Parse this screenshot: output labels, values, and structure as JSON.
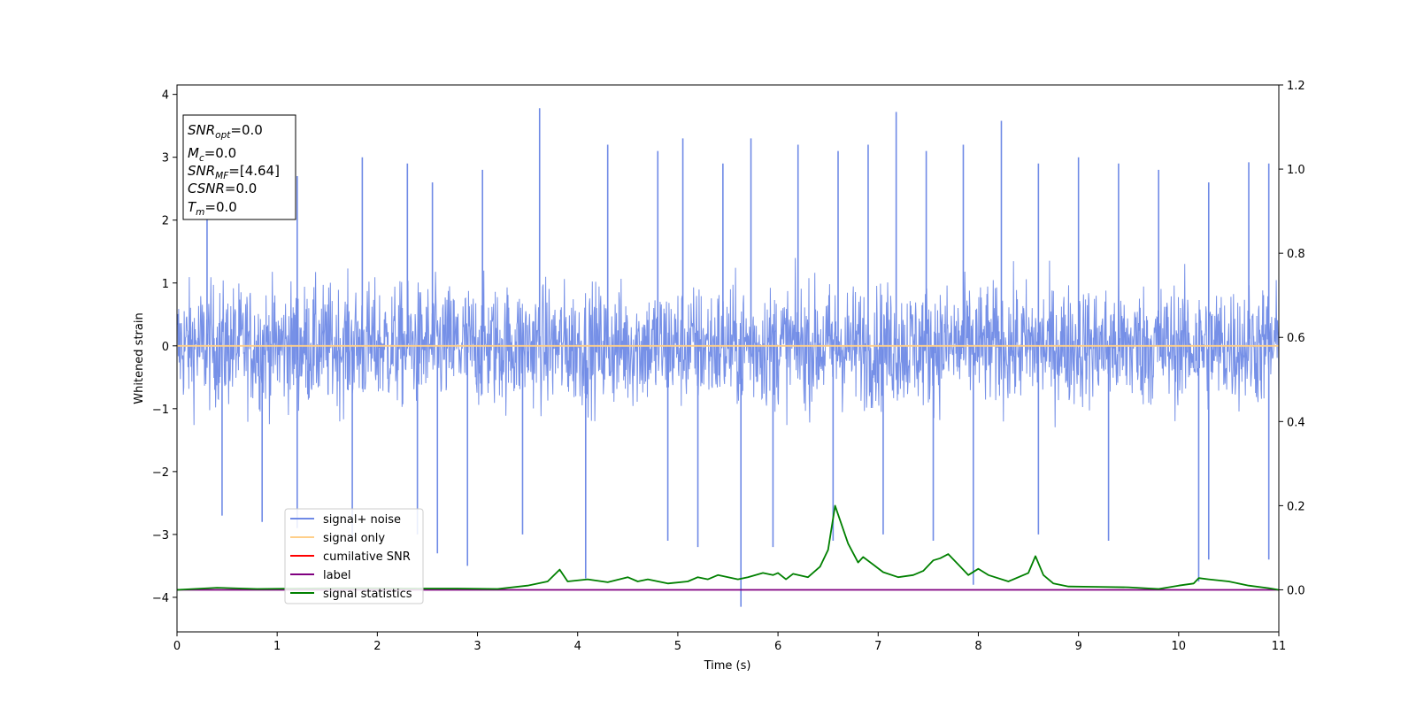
{
  "chart_data": {
    "type": "line",
    "xlabel": "Time (s)",
    "ylabel": "Whitened strain",
    "xlim": [
      0,
      11
    ],
    "ylim_left": [
      -4.55,
      4.15
    ],
    "ylim_right": [
      -0.1,
      1.2
    ],
    "x_ticks": [
      0,
      1,
      2,
      3,
      4,
      5,
      6,
      7,
      8,
      9,
      10,
      11
    ],
    "y_ticks_left": [
      4,
      3,
      2,
      1,
      0,
      -1,
      -2,
      -3,
      -4
    ],
    "y_ticks_right": [
      1.2,
      1.0,
      0.8,
      0.6,
      0.4,
      0.2,
      0.0
    ],
    "legend_position": "lower-left",
    "legend": [
      {
        "label": "signal+ noise",
        "color": "#6f8ae6"
      },
      {
        "label": "signal only",
        "color": "#ffcf8a"
      },
      {
        "label": "cumilative SNR",
        "color": "#ff0000"
      },
      {
        "label": "label",
        "color": "#800080"
      },
      {
        "label": "signal statistics",
        "color": "#008000"
      }
    ],
    "info_box": [
      {
        "main": "SNR",
        "sub": "opt",
        "value": "=0.0"
      },
      {
        "main": "M",
        "sub": "c",
        "value": "=0.0"
      },
      {
        "main": "SNR",
        "sub": "MF",
        "value": "=[4.64]"
      },
      {
        "main": "CSNR",
        "sub": "",
        "value": "=0.0"
      },
      {
        "main": "T",
        "sub": "m",
        "value": "=0.0"
      }
    ],
    "series": [
      {
        "name": "signal+ noise",
        "axis": "left",
        "style": "dense noise band",
        "color": "#6f8ae6",
        "typical_range": [
          -1.5,
          1.5
        ],
        "spikes_up": [
          [
            0.3,
            2.6
          ],
          [
            1.2,
            2.7
          ],
          [
            1.85,
            3.0
          ],
          [
            2.3,
            2.9
          ],
          [
            2.55,
            2.6
          ],
          [
            3.05,
            2.8
          ],
          [
            3.62,
            3.78
          ],
          [
            4.3,
            3.2
          ],
          [
            4.8,
            3.1
          ],
          [
            5.05,
            3.3
          ],
          [
            5.45,
            2.9
          ],
          [
            5.73,
            3.3
          ],
          [
            6.2,
            3.2
          ],
          [
            6.6,
            3.1
          ],
          [
            6.9,
            3.2
          ],
          [
            7.18,
            3.72
          ],
          [
            7.48,
            3.1
          ],
          [
            7.85,
            3.2
          ],
          [
            8.23,
            3.58
          ],
          [
            8.6,
            2.9
          ],
          [
            9.0,
            3.0
          ],
          [
            9.4,
            2.9
          ],
          [
            9.8,
            2.8
          ],
          [
            10.3,
            2.6
          ],
          [
            10.7,
            2.92
          ],
          [
            10.9,
            2.9
          ]
        ],
        "spikes_down": [
          [
            0.45,
            -2.7
          ],
          [
            0.85,
            -2.8
          ],
          [
            1.2,
            -2.9
          ],
          [
            1.75,
            -3.1
          ],
          [
            2.4,
            -3.0
          ],
          [
            2.6,
            -3.3
          ],
          [
            2.9,
            -3.5
          ],
          [
            3.45,
            -3.0
          ],
          [
            4.08,
            -3.7
          ],
          [
            4.9,
            -3.1
          ],
          [
            5.2,
            -3.2
          ],
          [
            5.63,
            -4.15
          ],
          [
            5.95,
            -3.2
          ],
          [
            6.55,
            -3.1
          ],
          [
            7.05,
            -3.0
          ],
          [
            7.55,
            -3.1
          ],
          [
            7.95,
            -3.8
          ],
          [
            8.6,
            -3.0
          ],
          [
            9.3,
            -3.1
          ],
          [
            10.2,
            -3.75
          ],
          [
            10.3,
            -3.4
          ],
          [
            10.9,
            -3.4
          ]
        ]
      },
      {
        "name": "signal only",
        "axis": "left",
        "color": "#ffcf8a",
        "x": [
          0,
          11
        ],
        "y": [
          0,
          0
        ]
      },
      {
        "name": "label",
        "axis": "right",
        "color": "#800080",
        "x": [
          0,
          11
        ],
        "y": [
          0.0,
          0.0
        ]
      },
      {
        "name": "signal statistics",
        "axis": "right",
        "color": "#008000",
        "x": [
          0,
          0.4,
          0.8,
          1.2,
          1.6,
          2.0,
          2.4,
          2.8,
          3.2,
          3.5,
          3.7,
          3.82,
          3.9,
          4.1,
          4.3,
          4.5,
          4.6,
          4.7,
          4.9,
          5.1,
          5.2,
          5.3,
          5.4,
          5.6,
          5.7,
          5.85,
          5.95,
          6.0,
          6.08,
          6.15,
          6.3,
          6.42,
          6.5,
          6.57,
          6.7,
          6.8,
          6.85,
          6.95,
          7.05,
          7.2,
          7.35,
          7.45,
          7.55,
          7.62,
          7.7,
          7.8,
          7.9,
          8.0,
          8.1,
          8.3,
          8.5,
          8.57,
          8.65,
          8.75,
          8.9,
          9.2,
          9.5,
          9.8,
          10.0,
          10.15,
          10.2,
          10.3,
          10.5,
          10.7,
          10.9,
          11.0
        ],
        "y": [
          0.0,
          0.005,
          0.002,
          0.003,
          0.004,
          0.004,
          0.003,
          0.003,
          0.002,
          0.01,
          0.02,
          0.048,
          0.02,
          0.025,
          0.018,
          0.03,
          0.02,
          0.025,
          0.015,
          0.02,
          0.03,
          0.025,
          0.035,
          0.025,
          0.03,
          0.04,
          0.035,
          0.04,
          0.025,
          0.038,
          0.03,
          0.055,
          0.095,
          0.2,
          0.11,
          0.065,
          0.078,
          0.06,
          0.042,
          0.03,
          0.035,
          0.045,
          0.07,
          0.075,
          0.085,
          0.06,
          0.035,
          0.05,
          0.035,
          0.02,
          0.04,
          0.08,
          0.035,
          0.015,
          0.008,
          0.007,
          0.006,
          0.002,
          0.01,
          0.015,
          0.028,
          0.025,
          0.02,
          0.01,
          0.004,
          0.0
        ]
      }
    ]
  }
}
